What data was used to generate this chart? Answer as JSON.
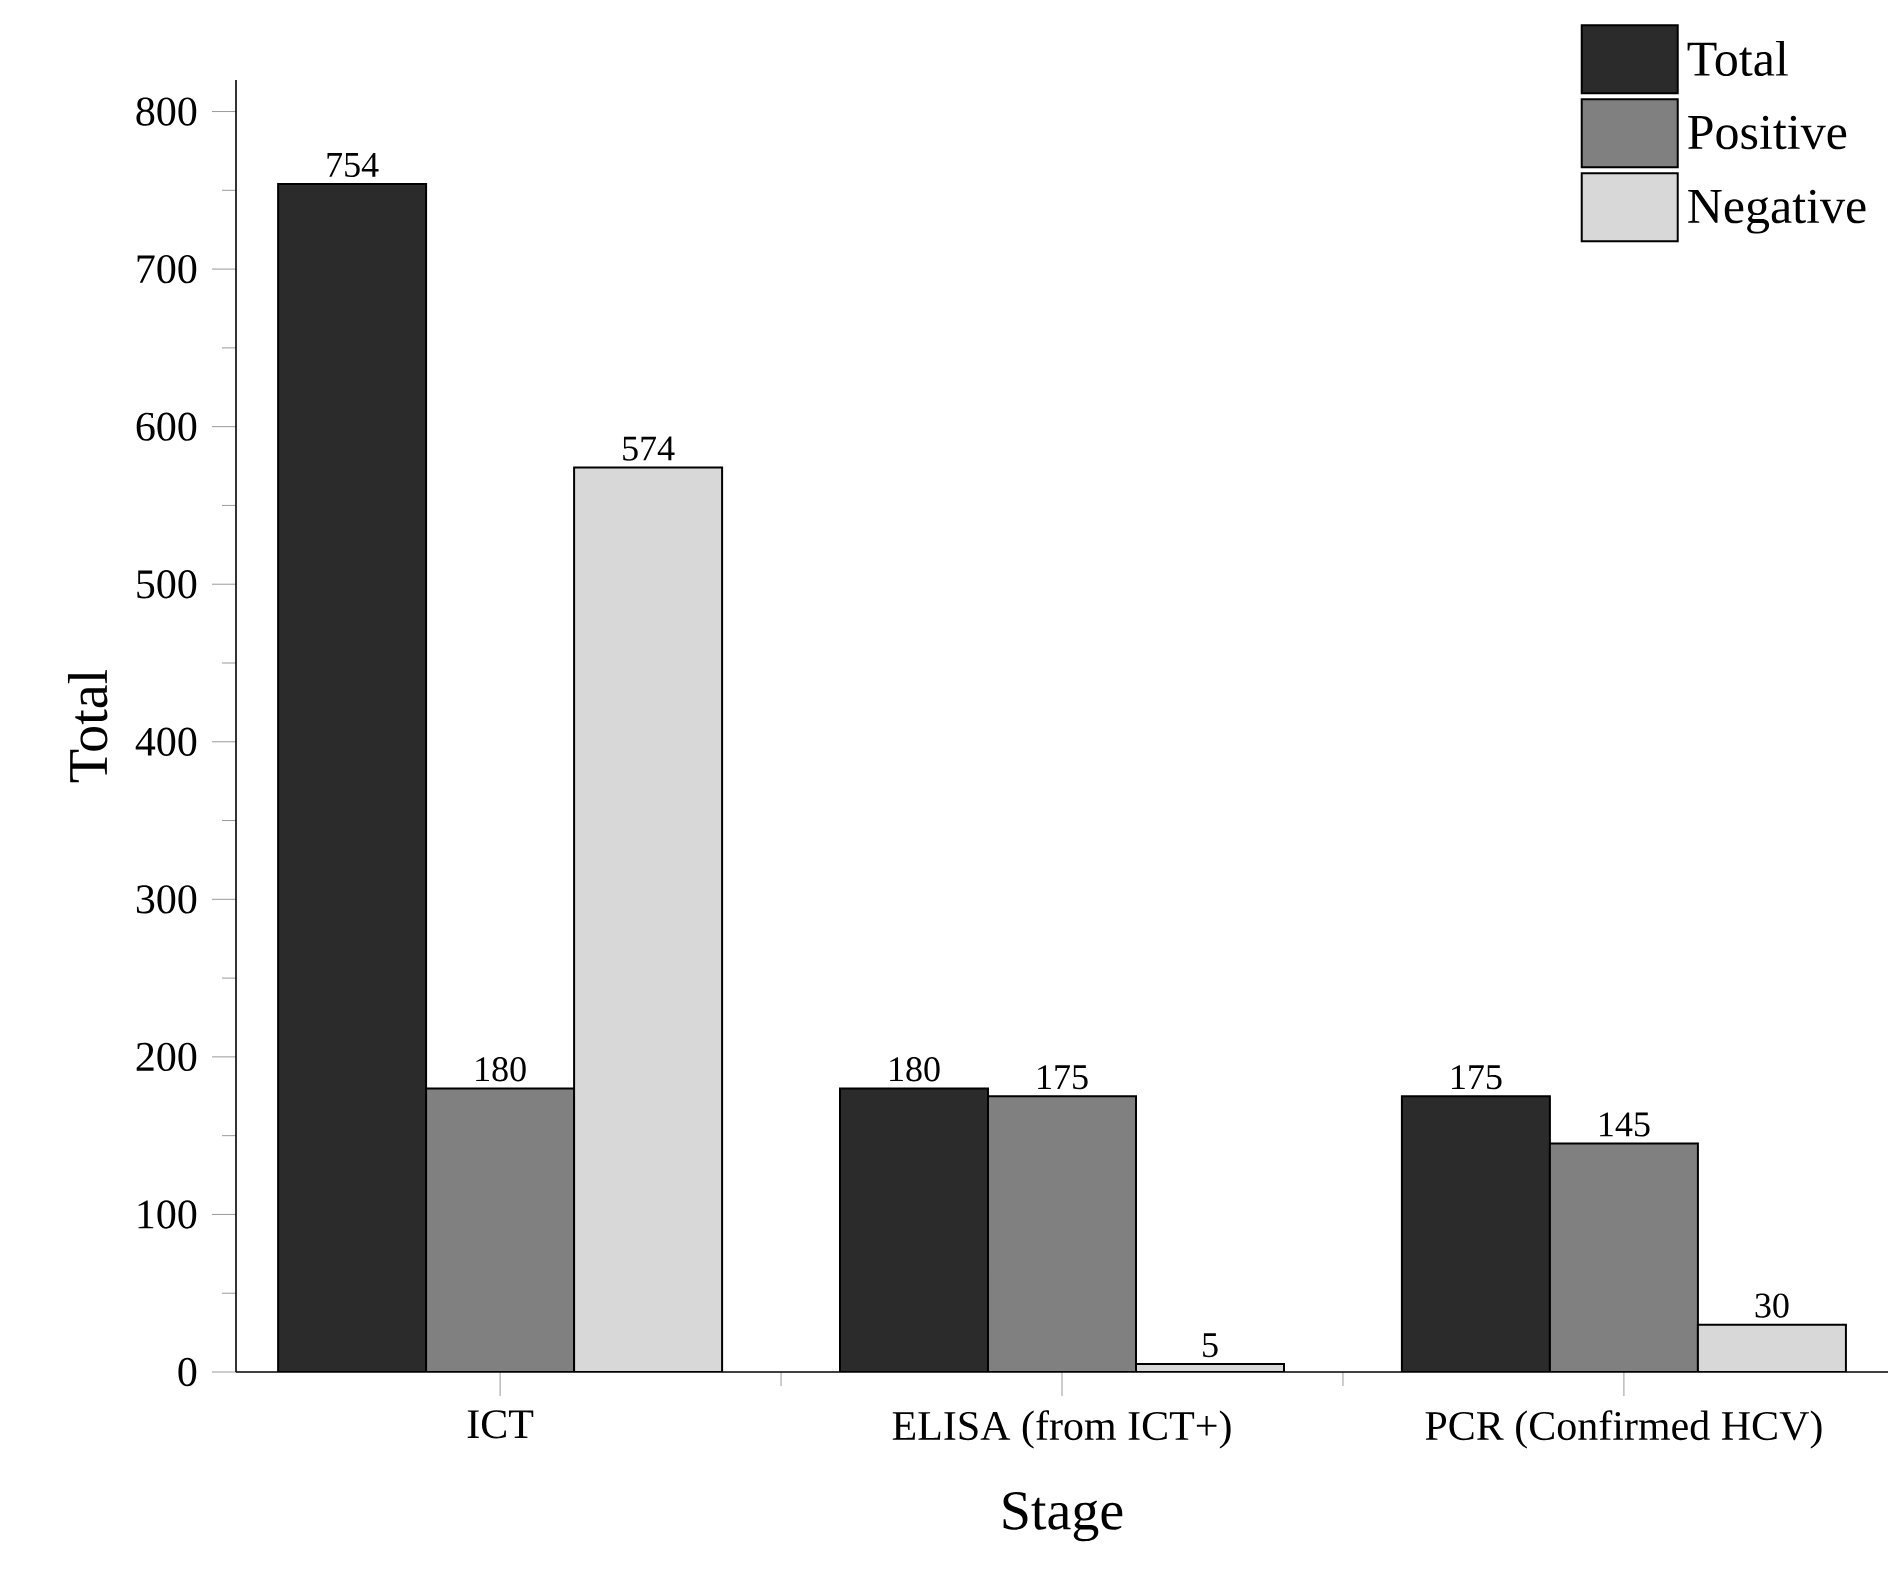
{
  "chart_data": {
    "type": "bar",
    "xlabel": "Stage",
    "ylabel": "Total",
    "categories": [
      "ICT",
      "ELISA (from ICT+)",
      "PCR (Confirmed HCV)"
    ],
    "series": [
      {
        "name": "Total",
        "color": "#2b2b2b",
        "values": [
          754,
          180,
          175
        ]
      },
      {
        "name": "Positive",
        "color": "#808080",
        "values": [
          180,
          175,
          145
        ]
      },
      {
        "name": "Negative",
        "color": "#d8d8d8",
        "values": [
          574,
          5,
          30
        ]
      }
    ],
    "ylim": [
      0,
      820
    ],
    "yticks": [
      0,
      100,
      200,
      300,
      400,
      500,
      600,
      700,
      800
    ],
    "data_labels": true,
    "legend": "top right"
  }
}
